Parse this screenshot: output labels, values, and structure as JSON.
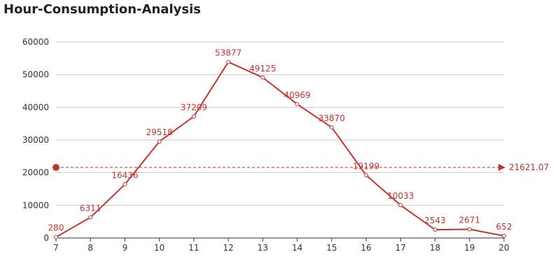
{
  "chart_data": {
    "type": "line",
    "title": "Hour-Consumption-Analysis",
    "xlabel": "",
    "ylabel": "",
    "categories": [
      "7",
      "8",
      "9",
      "10",
      "11",
      "12",
      "13",
      "14",
      "15",
      "16",
      "17",
      "18",
      "19",
      "20"
    ],
    "series": [
      {
        "values": [
          280,
          6311,
          16436,
          29518,
          37209,
          53877,
          49125,
          40969,
          33870,
          19199,
          10033,
          2543,
          2671,
          652
        ],
        "color": "#c23531"
      }
    ],
    "ylim": [
      0,
      60000
    ],
    "yticks": [
      0,
      10000,
      20000,
      30000,
      40000,
      50000,
      60000
    ],
    "average_line": {
      "value": 21621.07,
      "label": "21621.07",
      "color": "#c23531"
    },
    "grid": true,
    "legend": "none"
  }
}
